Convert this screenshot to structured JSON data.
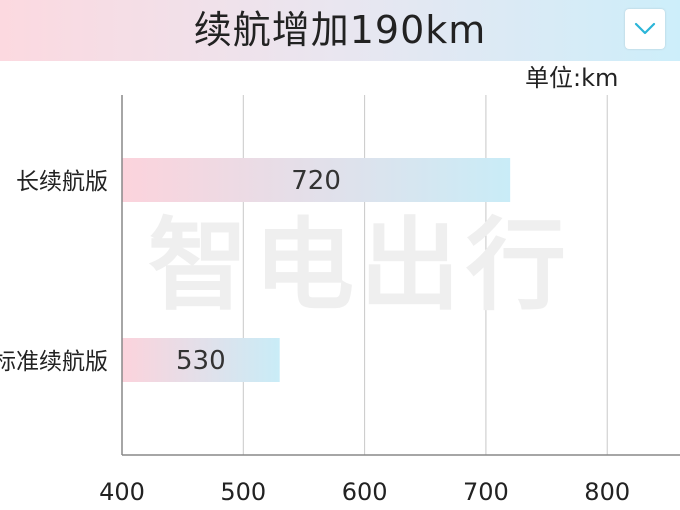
{
  "header": {
    "title": "续航增加190km",
    "dropdown_icon": "chevron-down-icon"
  },
  "unit_label": "单位:km",
  "watermark": "智电出行",
  "colors": {
    "bar_start": "#fcd3dc",
    "bar_end": "#c9ecf7",
    "grid": "#c8c8c8",
    "axis": "#888888",
    "chevron": "#2bb5d8"
  },
  "chart_data": {
    "type": "bar",
    "orientation": "horizontal",
    "categories": [
      "长续航版",
      "标准续航版"
    ],
    "values": [
      720,
      530
    ],
    "value_labels": [
      "720",
      "530"
    ],
    "xlim": [
      400,
      860
    ],
    "xticks": [
      400,
      500,
      600,
      700,
      800
    ],
    "xtick_labels": [
      "400",
      "500",
      "600",
      "700",
      "800"
    ],
    "grid": true,
    "title": "续航增加190km",
    "unit": "单位:km"
  }
}
